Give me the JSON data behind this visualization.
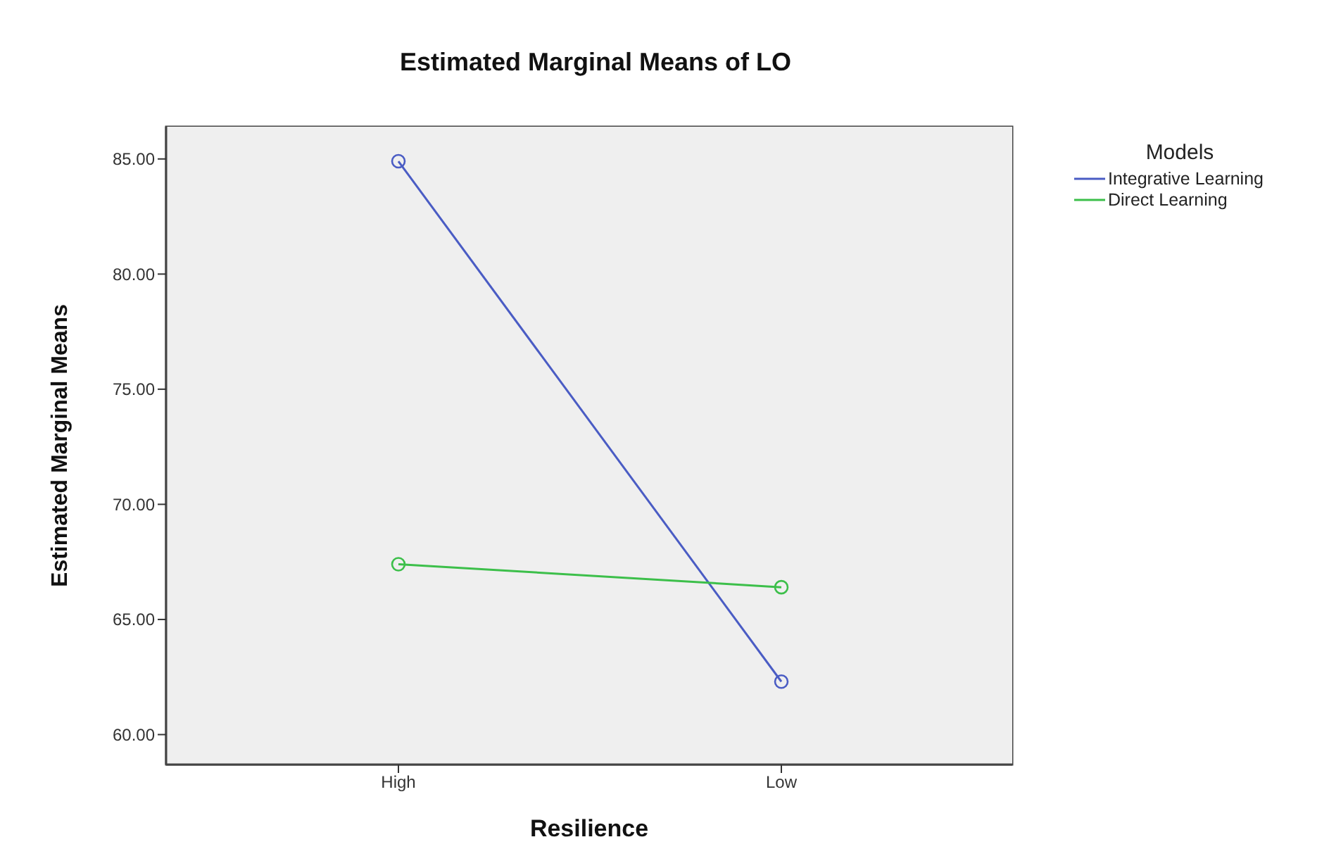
{
  "chart_data": {
    "type": "line",
    "title": "Estimated Marginal Means of LO",
    "xlabel": "Resilience",
    "ylabel": "Estimated Marginal Means",
    "legend_title": "Models",
    "categories": [
      "High",
      "Low"
    ],
    "series": [
      {
        "name": "Integrative Learning",
        "color": "#4a5cc4",
        "values": [
          84.9,
          62.3
        ]
      },
      {
        "name": "Direct Learning",
        "color": "#3cbf4a",
        "values": [
          67.4,
          66.4
        ]
      }
    ],
    "ylim": [
      58.7,
      86.4
    ],
    "yticks": [
      {
        "value": 60,
        "label": "60.00"
      },
      {
        "value": 65,
        "label": "65.00"
      },
      {
        "value": 70,
        "label": "70.00"
      },
      {
        "value": 75,
        "label": "75.00"
      },
      {
        "value": 80,
        "label": "80.00"
      },
      {
        "value": 85,
        "label": "85.00"
      }
    ],
    "grid": false,
    "legend": "top right",
    "marker": "circle",
    "line_style": "solid"
  }
}
